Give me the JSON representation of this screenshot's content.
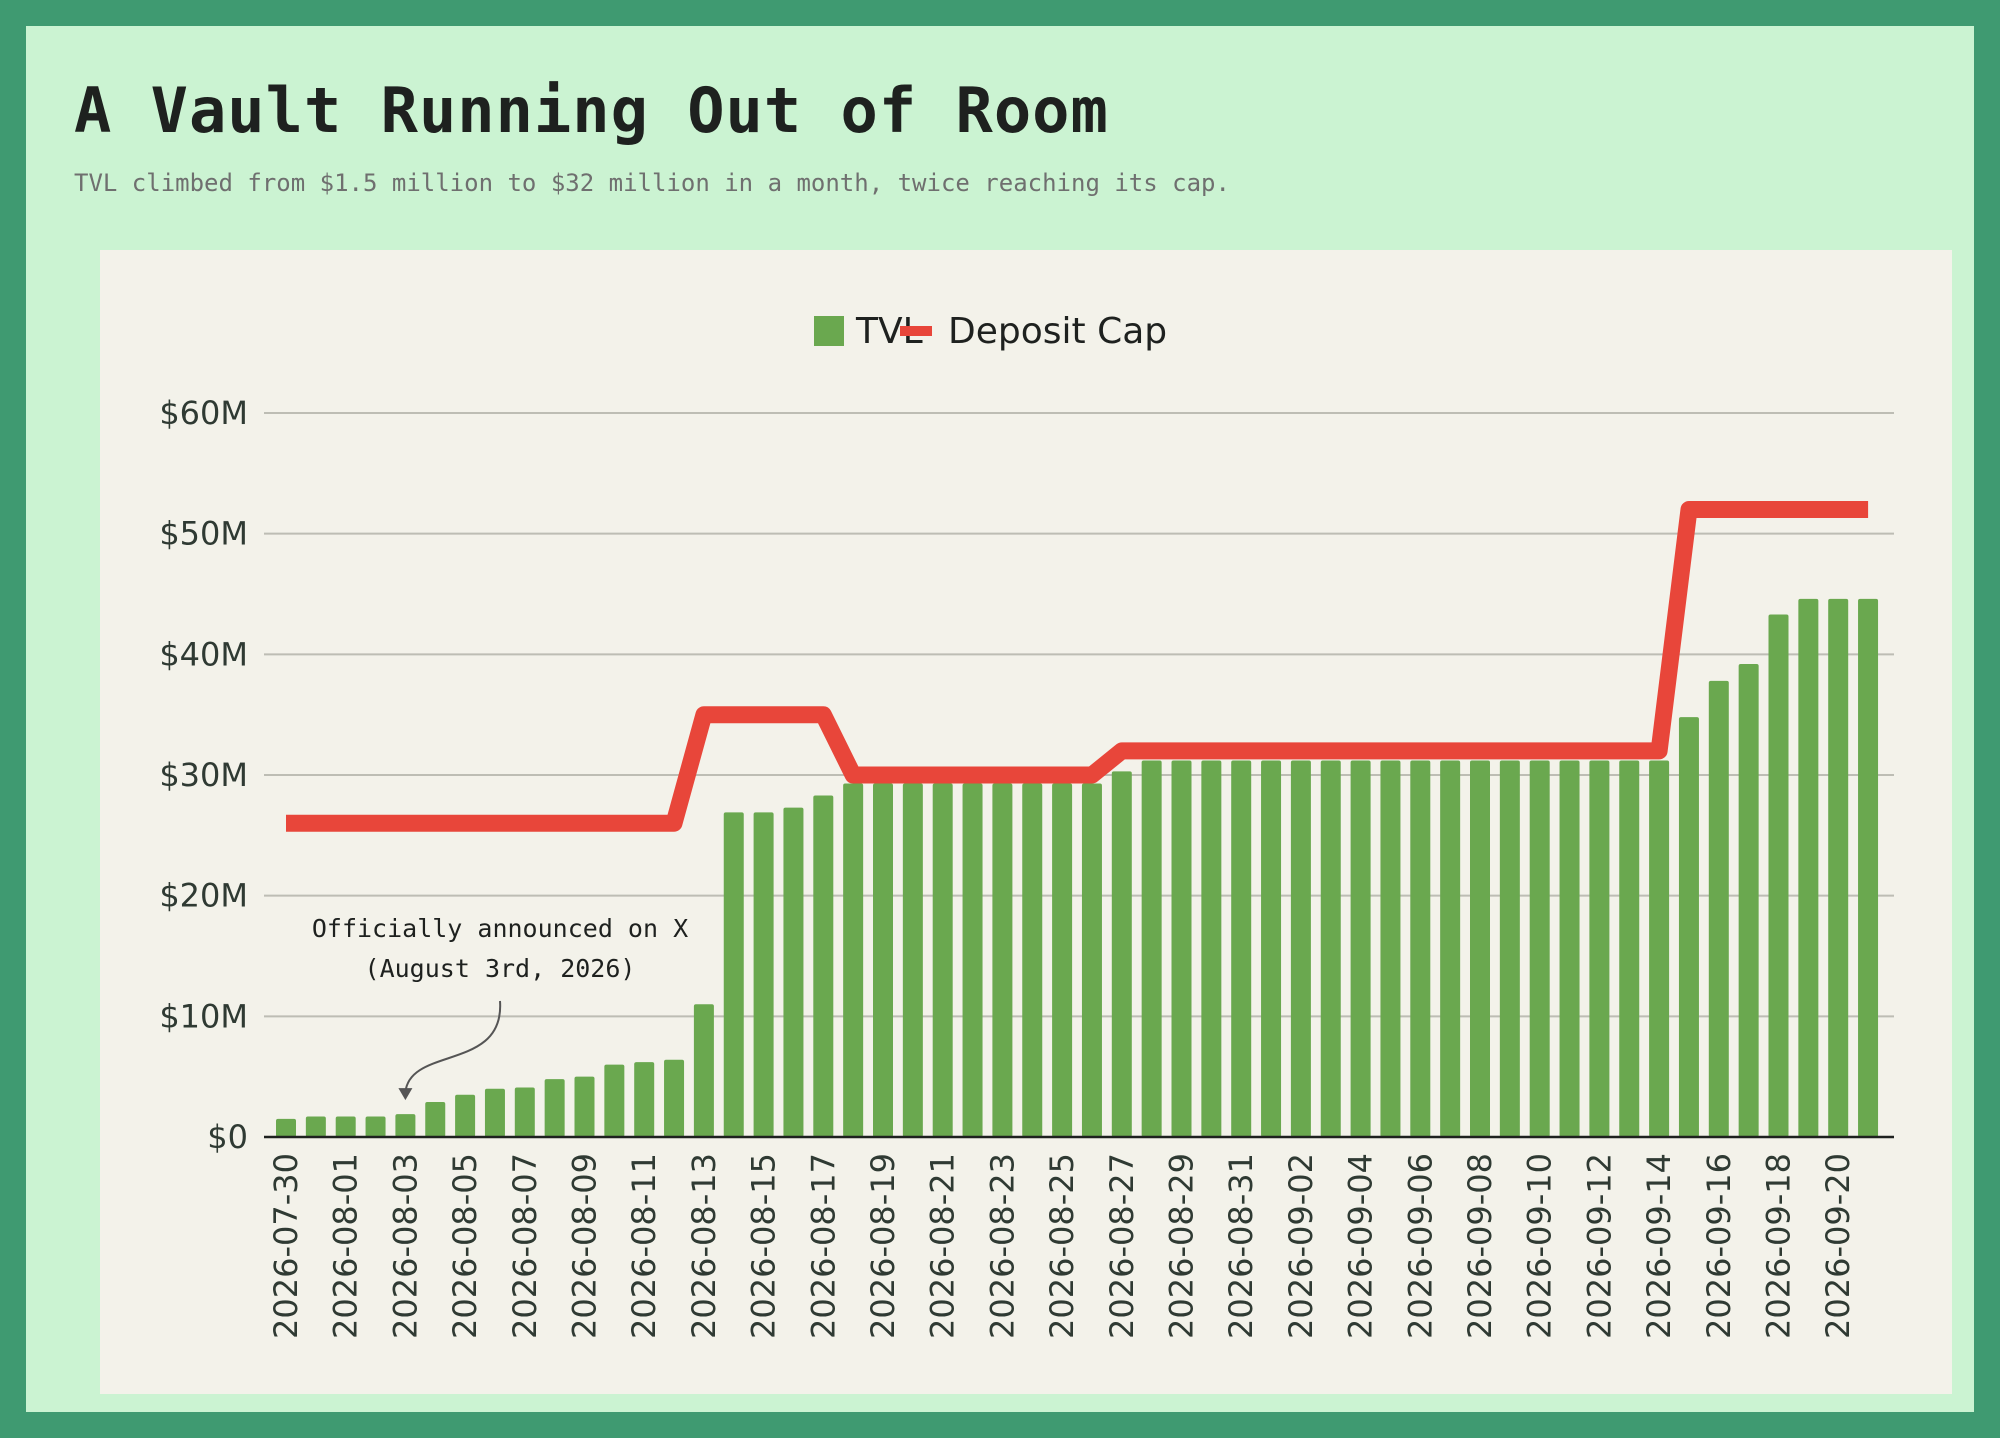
{
  "title": "A Vault Running Out of Room",
  "subtitle": "TVL climbed from $1.5 million to $32 million in a month, twice reaching its cap.",
  "colors": {
    "tvl": "#6aa84f",
    "cap": "#e8463a",
    "background": "#cbf3d2",
    "border": "#3f9a71",
    "plot_background": "#f3f2ea"
  },
  "chart_data": {
    "type": "bar",
    "xlabel": "",
    "ylabel": "",
    "ylim": [
      0,
      60000000
    ],
    "yticks": [
      0,
      10000000,
      20000000,
      30000000,
      40000000,
      50000000,
      60000000
    ],
    "ytick_labels": [
      "$0",
      "$10M",
      "$20M",
      "$30M",
      "$40M",
      "$50M",
      "$60M"
    ],
    "grid": "horizontal",
    "legend_position": "top-center",
    "categories": [
      "2026-07-30",
      "2026-07-31",
      "2026-08-01",
      "2026-08-02",
      "2026-08-03",
      "2026-08-04",
      "2026-08-05",
      "2026-08-06",
      "2026-08-07",
      "2026-08-08",
      "2026-08-09",
      "2026-08-10",
      "2026-08-11",
      "2026-08-12",
      "2026-08-13",
      "2026-08-14",
      "2026-08-15",
      "2026-08-16",
      "2026-08-17",
      "2026-08-18",
      "2026-08-19",
      "2026-08-20",
      "2026-08-21",
      "2026-08-22",
      "2026-08-23",
      "2026-08-24",
      "2026-08-25",
      "2026-08-26",
      "2026-08-27",
      "2026-08-28",
      "2026-08-29",
      "2026-08-30",
      "2026-08-31",
      "2026-09-01",
      "2026-09-02",
      "2026-09-03",
      "2026-09-04",
      "2026-09-05",
      "2026-09-06",
      "2026-09-07",
      "2026-09-08",
      "2026-09-09",
      "2026-09-10",
      "2026-09-11",
      "2026-09-12",
      "2026-09-13",
      "2026-09-14",
      "2026-09-15",
      "2026-09-16",
      "2026-09-17",
      "2026-09-18",
      "2026-09-19",
      "2026-09-20",
      "2026-09-21"
    ],
    "x_tick_labels": [
      "2026-07-30",
      "2026-08-01",
      "2026-08-03",
      "2026-08-05",
      "2026-08-07",
      "2026-08-09",
      "2026-08-11",
      "2026-08-13",
      "2026-08-15",
      "2026-08-17",
      "2026-08-19",
      "2026-08-21",
      "2026-08-23",
      "2026-08-25",
      "2026-08-27",
      "2026-08-29",
      "2026-08-31",
      "2026-09-02",
      "2026-09-04",
      "2026-09-06",
      "2026-09-08",
      "2026-09-10",
      "2026-09-12",
      "2026-09-14",
      "2026-09-16",
      "2026-09-18",
      "2026-09-20"
    ],
    "series": [
      {
        "name": "TVL",
        "type": "bar",
        "values": [
          1500000,
          1700000,
          1700000,
          1700000,
          1900000,
          2900000,
          3500000,
          4000000,
          4100000,
          4800000,
          5000000,
          6000000,
          6200000,
          6400000,
          11000000,
          26900000,
          26900000,
          27300000,
          28300000,
          29300000,
          29300000,
          29300000,
          29300000,
          29300000,
          29300000,
          29300000,
          29300000,
          29300000,
          30300000,
          31200000,
          31200000,
          31200000,
          31200000,
          31200000,
          31200000,
          31200000,
          31200000,
          31200000,
          31200000,
          31200000,
          31200000,
          31200000,
          31200000,
          31200000,
          31200000,
          31200000,
          31200000,
          34800000,
          37800000,
          39200000,
          43300000,
          44600000,
          44600000,
          44600000
        ]
      },
      {
        "name": "Deposit Cap",
        "type": "line",
        "values": [
          26000000,
          26000000,
          26000000,
          26000000,
          26000000,
          26000000,
          26000000,
          26000000,
          26000000,
          26000000,
          26000000,
          26000000,
          26000000,
          26000000,
          35000000,
          35000000,
          35000000,
          35000000,
          35000000,
          30000000,
          30000000,
          30000000,
          30000000,
          30000000,
          30000000,
          30000000,
          30000000,
          30000000,
          32000000,
          32000000,
          32000000,
          32000000,
          32000000,
          32000000,
          32000000,
          32000000,
          32000000,
          32000000,
          32000000,
          32000000,
          32000000,
          32000000,
          32000000,
          32000000,
          32000000,
          32000000,
          32000000,
          52000000,
          52000000,
          52000000,
          52000000,
          52000000,
          52000000,
          52000000
        ]
      }
    ],
    "annotations": [
      {
        "lines": [
          "Officially announced on X",
          "(August 3rd, 2026)"
        ],
        "target_category": "2026-08-03"
      }
    ]
  }
}
